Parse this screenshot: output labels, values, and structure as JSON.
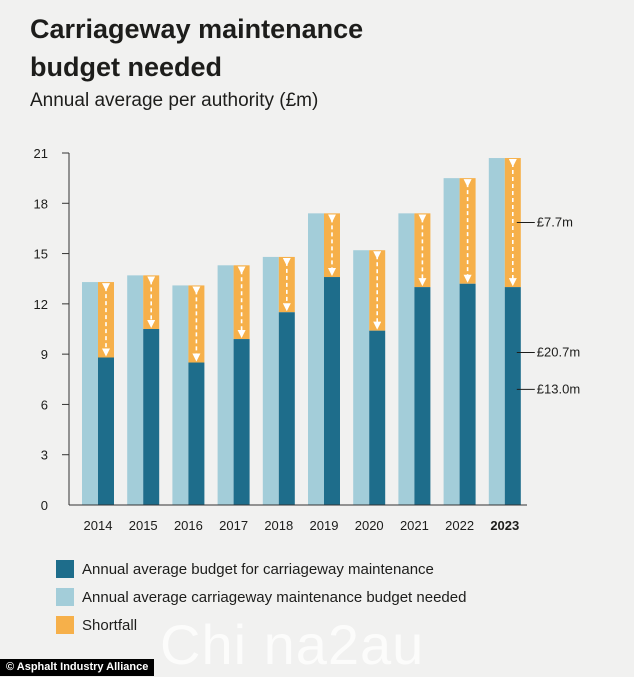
{
  "chart_data": {
    "type": "bar",
    "title": "Carriageway maintenance budget needed",
    "subtitle": "Annual average per authority (£m)",
    "categories": [
      "2014",
      "2015",
      "2016",
      "2017",
      "2018",
      "2019",
      "2020",
      "2021",
      "2022",
      "2023"
    ],
    "highlight_category": "2023",
    "series": [
      {
        "name": "Annual average carriageway maintenance budget needed",
        "values": [
          13.3,
          13.7,
          13.1,
          14.3,
          14.8,
          17.4,
          15.2,
          17.4,
          19.5,
          20.7
        ]
      },
      {
        "name": "Annual average budget for carriageway maintenance",
        "values": [
          8.8,
          10.5,
          8.5,
          9.9,
          11.5,
          13.6,
          10.4,
          13.0,
          13.2,
          13.0
        ]
      },
      {
        "name": "Shortfall",
        "values": [
          4.5,
          3.2,
          4.6,
          4.4,
          3.3,
          3.8,
          4.8,
          4.4,
          6.3,
          7.7
        ]
      }
    ],
    "yticks": [
      0,
      3,
      6,
      9,
      12,
      15,
      18,
      21
    ],
    "ylim": [
      0,
      21
    ],
    "annotations": [
      {
        "label": "£7.7m",
        "value": 16.85
      },
      {
        "label": "£20.7m",
        "value": 9.1
      },
      {
        "label": "£13.0m",
        "value": 6.9
      }
    ],
    "colors": {
      "needed": "#a3cdd9",
      "budget": "#1e6d8b",
      "shortfall": "#f6b04a",
      "axis": "#333333"
    }
  },
  "legend": [
    {
      "label": "Annual average budget for carriageway maintenance",
      "color": "#1e6d8b"
    },
    {
      "label": "Annual average carriageway maintenance budget needed",
      "color": "#a3cdd9"
    },
    {
      "label": "Shortfall",
      "color": "#f6b04a"
    }
  ],
  "footer": "© Asphalt Industry Alliance",
  "watermark": "Chi na2au"
}
